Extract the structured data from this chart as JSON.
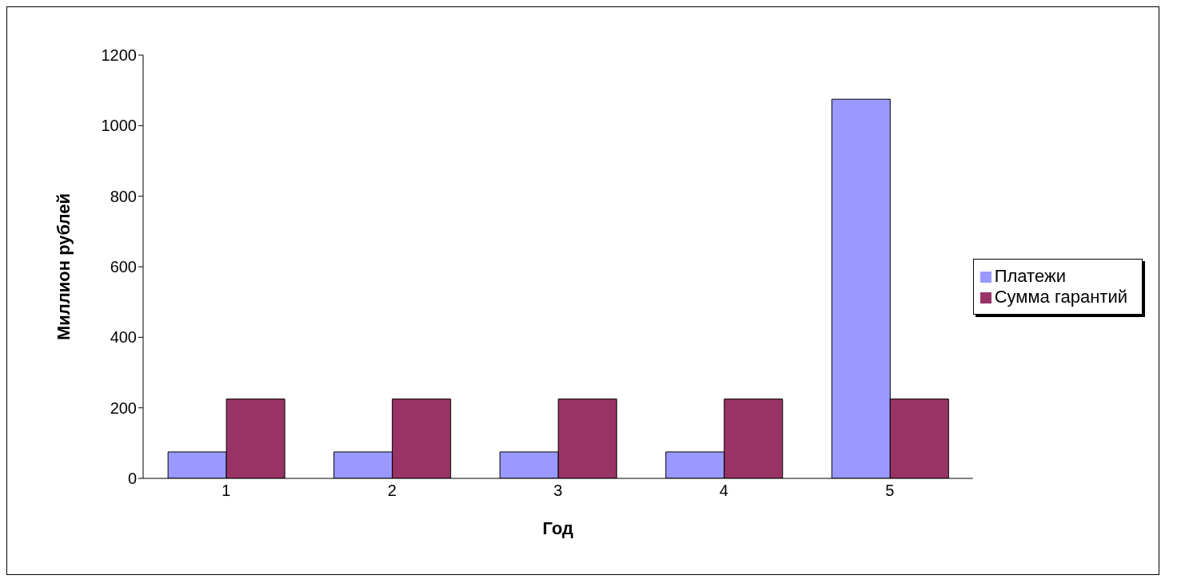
{
  "chart_data": {
    "type": "bar",
    "xlabel": "Год",
    "ylabel": "Миллион рублей",
    "categories": [
      "1",
      "2",
      "3",
      "4",
      "5"
    ],
    "series": [
      {
        "name": "Платежи",
        "color": "#9999ff",
        "values": [
          75,
          75,
          75,
          75,
          1075
        ]
      },
      {
        "name": "Сумма гарантий",
        "color": "#993366",
        "values": [
          225,
          225,
          225,
          225,
          225
        ]
      }
    ],
    "ylim": [
      0,
      1200
    ],
    "yticks": [
      0,
      200,
      400,
      600,
      800,
      1000,
      1200
    ],
    "grid": false,
    "legend": "right"
  }
}
